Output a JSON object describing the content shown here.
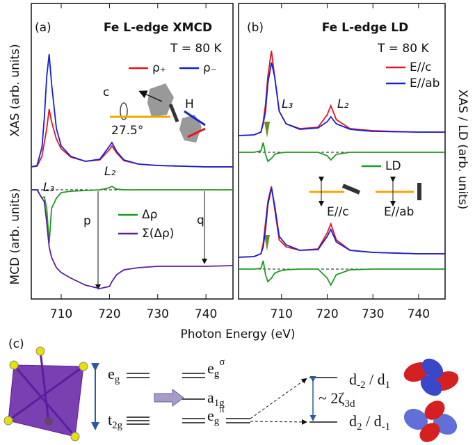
{
  "chart_data": [
    {
      "type": "line",
      "title": "Fe L-edge XMCD",
      "ylabel": [
        "XAS (arb. units)",
        "MCD (arb. units)"
      ],
      "x": [
        703.8,
        705,
        706,
        706.5,
        707,
        707.5,
        708,
        709,
        710,
        712,
        715,
        718,
        720,
        720.5,
        721.5,
        723,
        726,
        730,
        740,
        745.6
      ],
      "xlim": [
        703.8,
        745.6
      ],
      "xticks": [
        710,
        720,
        730,
        740
      ],
      "ylim": [
        0,
        425
      ],
      "series": [
        {
          "name": "ρ₊",
          "color": "#e8141c",
          "values": [
            190,
            191,
            205,
            225,
            245,
            273,
            255,
            230,
            216,
            204,
            198,
            200,
            215,
            220,
            210,
            199,
            194,
            192,
            190,
            190
          ]
        },
        {
          "name": "ρ₋",
          "color": "#1520d8",
          "values": [
            190,
            192,
            218,
            260,
            320,
            352,
            310,
            245,
            220,
            205,
            198,
            201,
            220,
            225,
            212,
            200,
            194,
            192,
            190,
            190
          ]
        },
        {
          "name": "Δρ",
          "color": "#1e9a1e",
          "values": [
            157,
            157,
            145,
            147,
            130,
            80,
            130,
            145,
            153,
            155,
            156,
            157,
            160,
            162,
            158,
            157,
            157,
            157,
            157,
            157
          ]
        },
        {
          "name": "Σ(Δρ)",
          "color": "#5a1f9e",
          "values": [
            157,
            157,
            145,
            140,
            110,
            75,
            60,
            45,
            38,
            30,
            20,
            15,
            18,
            25,
            35,
            42,
            45,
            47,
            47,
            48
          ]
        }
      ],
      "annotations": [
        "(a)",
        "T = 80 K",
        "c",
        "H",
        "27.5°",
        "L₃",
        "L₂",
        "p",
        "q"
      ]
    },
    {
      "type": "line",
      "title": "Fe L-edge LD",
      "ylabel": [
        "XAS / LD (arb. units)"
      ],
      "x": [
        700.6,
        704,
        705.5,
        706,
        706.5,
        707,
        707.8,
        708.5,
        709.5,
        711,
        714,
        718,
        720,
        720.8,
        722,
        725,
        730,
        740,
        745.8
      ],
      "xlim": [
        700.6,
        745.8
      ],
      "xticks": [
        710,
        720,
        730,
        740
      ],
      "ylim": [
        0,
        425
      ],
      "series": [
        {
          "name": "E//c",
          "color": "#e8141c",
          "values": [
            235,
            236,
            240,
            255,
            280,
            320,
            357,
            320,
            270,
            252,
            245,
            247,
            265,
            278,
            258,
            245,
            242,
            240,
            240
          ]
        },
        {
          "name": "E//ab",
          "color": "#1520d8",
          "values": [
            235,
            236,
            240,
            252,
            270,
            310,
            340,
            320,
            270,
            252,
            244,
            246,
            255,
            262,
            252,
            244,
            241,
            240,
            240
          ]
        },
        {
          "name": "LD",
          "color": "#1e9a1e",
          "values": [
            211,
            211,
            213,
            225,
            208,
            198,
            202,
            208,
            210,
            211,
            211,
            211,
            206,
            200,
            208,
            211,
            211,
            211,
            211
          ]
        },
        {
          "color": "#e8141c",
          "values": [
            60,
            61,
            65,
            80,
            110,
            140,
            162,
            130,
            85,
            75,
            70,
            72,
            95,
            108,
            85,
            70,
            67,
            65,
            65
          ]
        },
        {
          "color": "#1520d8",
          "values": [
            60,
            61,
            65,
            75,
            100,
            135,
            160,
            135,
            90,
            78,
            70,
            71,
            90,
            100,
            82,
            70,
            67,
            65,
            65
          ]
        },
        {
          "color": "#1e9a1e",
          "values": [
            43,
            43,
            44,
            55,
            35,
            25,
            30,
            37,
            40,
            42,
            43,
            43,
            30,
            20,
            35,
            42,
            43,
            43,
            43
          ]
        }
      ],
      "annotations": [
        "(b)",
        "T = 80 K",
        "L₃",
        "L₂",
        "E//c",
        "E//ab"
      ]
    }
  ],
  "xlabel": "Photon Energy (eV)",
  "diagram": {
    "panel_label": "(c)",
    "labels": [
      [
        {
          "text": "e"
        },
        {
          "sub": "g"
        }
      ],
      [
        {
          "text": "t"
        },
        {
          "sub": "2g"
        }
      ],
      [
        {
          "text": "e"
        },
        {
          "sub": "g"
        },
        {
          "sup": "σ"
        }
      ],
      [
        {
          "text": "a"
        },
        {
          "sub": "1g"
        }
      ],
      [
        {
          "text": "e"
        },
        {
          "sub": "g"
        },
        {
          "sup": "π"
        }
      ],
      [
        {
          "text": "~ 2ζ"
        },
        {
          "sub": "3d"
        }
      ],
      [
        {
          "text": "d"
        },
        {
          "sub": "-2"
        },
        {
          "text": " / d"
        },
        {
          "sub": "1"
        }
      ],
      [
        {
          "text": "d"
        },
        {
          "sub": "2"
        },
        {
          "text": " / d"
        },
        {
          "sub": "-1"
        }
      ]
    ]
  }
}
